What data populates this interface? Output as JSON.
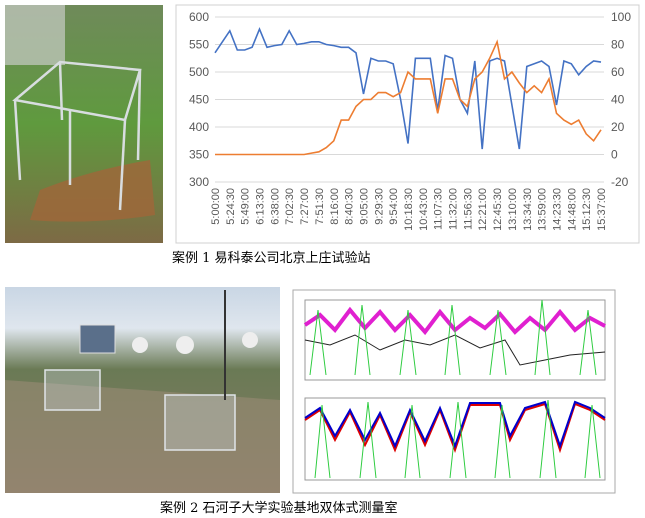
{
  "captions": [
    "案例 1 易科泰公司北京上庄试验站",
    "案例 2 石河子大学实验基地双体式测量室"
  ],
  "chart_data": {
    "type": "line",
    "categories": [
      "5:00:00",
      null,
      "5:24:30",
      null,
      "5:49:00",
      null,
      "6:13:30",
      null,
      "6:38:00",
      null,
      "7:02:30",
      null,
      "7:27:00",
      null,
      "7:51:30",
      null,
      "8:16:00",
      null,
      "8:40:30",
      null,
      "9:05:00",
      null,
      "9:29:30",
      null,
      "9:54:00",
      null,
      "10:18:30",
      null,
      "10:43:00",
      null,
      "11:07:30",
      null,
      "11:32:00",
      null,
      "11:56:30",
      null,
      "12:21:00",
      null,
      "12:45:30",
      null,
      "13:10:00",
      null,
      "13:34:30",
      null,
      "13:59:00",
      null,
      "14:23:30",
      null,
      "14:48:00",
      null,
      "15:12:30",
      null,
      "15:37:00"
    ],
    "series": [
      {
        "color": "#4472c4",
        "values": [
          535,
          555,
          575,
          540,
          540,
          545,
          578,
          545,
          548,
          550,
          575,
          550,
          552,
          555,
          555,
          550,
          548,
          545,
          545,
          535,
          460,
          525,
          520,
          520,
          515,
          450,
          370,
          525,
          525,
          525,
          430,
          530,
          525,
          450,
          425,
          520,
          360,
          520,
          525,
          520,
          440,
          360,
          510,
          515,
          520,
          510,
          440,
          520,
          515,
          495,
          510,
          520,
          518
        ]
      },
      {
        "color": "#ed7d31",
        "axis": "y2",
        "values": [
          0,
          0,
          0,
          0,
          0,
          0,
          0,
          0,
          0,
          0,
          0,
          0,
          0,
          1,
          2,
          5,
          10,
          25,
          25,
          35,
          40,
          40,
          45,
          45,
          42,
          45,
          60,
          55,
          55,
          55,
          30,
          55,
          55,
          40,
          35,
          55,
          60,
          70,
          82,
          55,
          60,
          52,
          45,
          50,
          45,
          55,
          30,
          25,
          22,
          25,
          15,
          10,
          18
        ]
      }
    ],
    "ylim": [
      300,
      600
    ],
    "yticks": [
      300,
      350,
      400,
      450,
      500,
      550,
      600
    ],
    "y2lim": [
      -20,
      100
    ],
    "y2ticks": [
      -20,
      0,
      20,
      40,
      60,
      80,
      100
    ],
    "grid": true
  }
}
